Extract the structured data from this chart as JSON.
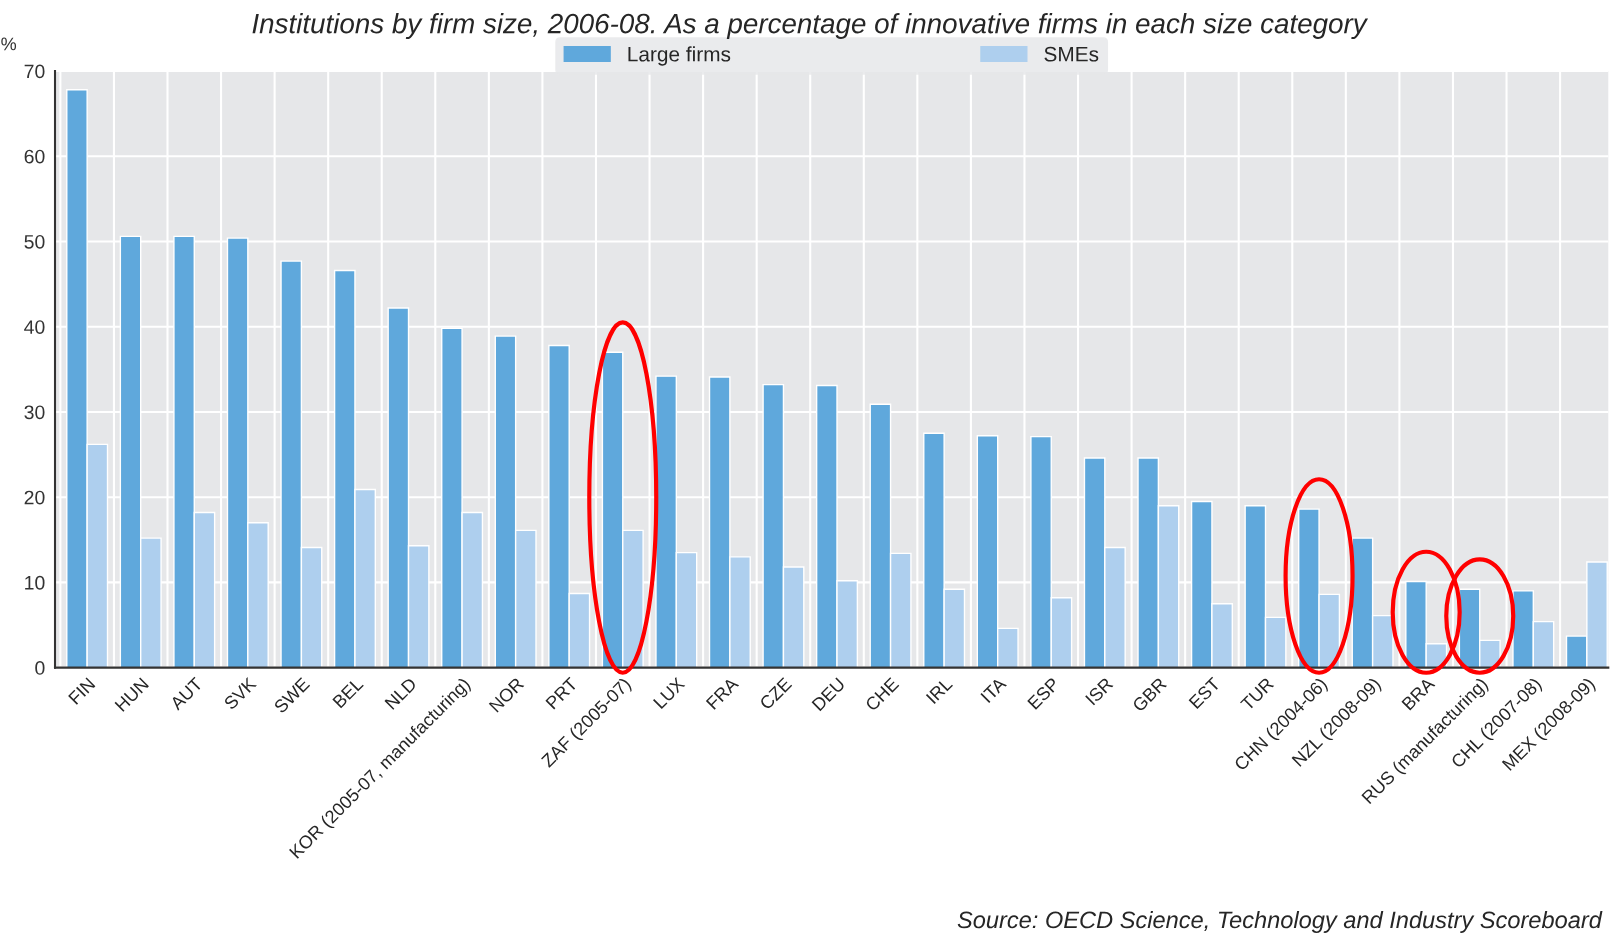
{
  "chart_data": {
    "type": "bar",
    "title": "Institutions by firm size, 2006-08. As a percentage of innovative firms in each size category",
    "ylabel": "%",
    "categories": [
      "FIN",
      "HUN",
      "AUT",
      "SVK",
      "SWE",
      "BEL",
      "NLD",
      "KOR (2005-07, manufacturing)",
      "NOR",
      "PRT",
      "ZAF (2005-07)",
      "LUX",
      "FRA",
      "CZE",
      "DEU",
      "CHE",
      "IRL",
      "ITA",
      "ESP",
      "ISR",
      "GBR",
      "EST",
      "TUR",
      "CHN (2004-06)",
      "NZL (2008-09)",
      "BRA",
      "RUS (manufacturing)",
      "CHL (2007-08)",
      "MEX (2008-09)"
    ],
    "series": [
      {
        "name": "Large firms",
        "color": "#5fa8dc",
        "values": [
          67.8,
          50.6,
          50.6,
          50.4,
          47.7,
          46.6,
          42.2,
          39.8,
          38.9,
          37.8,
          37.0,
          34.2,
          34.1,
          33.2,
          33.1,
          30.9,
          27.5,
          27.2,
          27.1,
          24.6,
          24.6,
          19.5,
          19.0,
          18.6,
          15.2,
          10.1,
          9.2,
          9.0,
          3.7
        ]
      },
      {
        "name": "SMEs",
        "color": "#aecfee",
        "values": [
          26.2,
          15.2,
          18.2,
          17.0,
          14.1,
          20.9,
          14.3,
          18.2,
          16.1,
          8.7,
          16.1,
          13.5,
          13.0,
          11.8,
          10.2,
          13.4,
          9.2,
          4.6,
          8.2,
          14.1,
          19.0,
          7.5,
          5.9,
          8.6,
          6.1,
          2.8,
          3.2,
          5.4,
          12.4
        ]
      }
    ],
    "ylim": [
      0,
      70
    ],
    "yticks": [
      0,
      10,
      20,
      30,
      40,
      50,
      60,
      70
    ],
    "grid": true,
    "legend": "top",
    "annotations": [
      "Source: OECD Science, Technology and Industry Scoreboard"
    ]
  }
}
